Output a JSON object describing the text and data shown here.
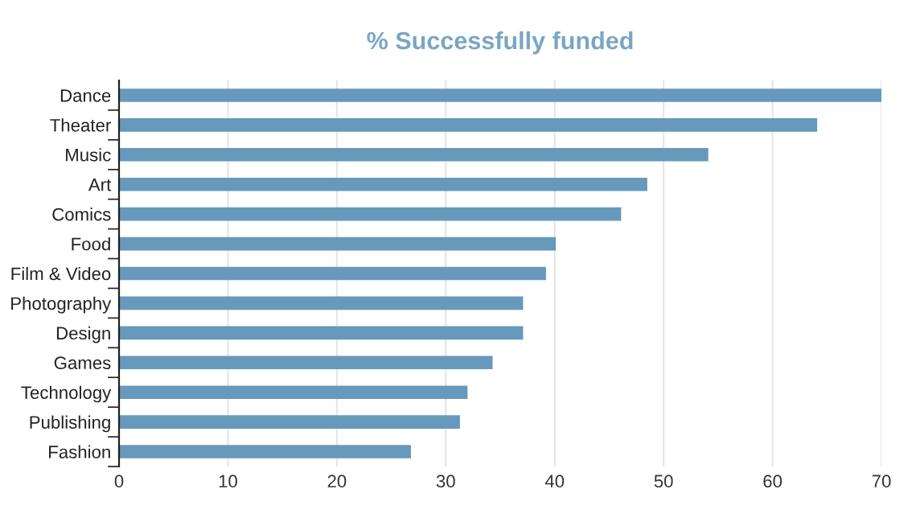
{
  "chart_data": {
    "type": "bar",
    "orientation": "horizontal",
    "title": "% Successfully funded",
    "categories": [
      "Dance",
      "Theater",
      "Music",
      "Art",
      "Comics",
      "Food",
      "Film & Video",
      "Photography",
      "Design",
      "Games",
      "Technology",
      "Publishing",
      "Fashion"
    ],
    "values": [
      70,
      64.1,
      54.1,
      48.5,
      46.1,
      40.1,
      39.2,
      37.1,
      37.1,
      34.3,
      32.0,
      31.3,
      26.8
    ],
    "color": "#6699bb",
    "xlim": [
      0,
      70
    ],
    "xticks": [
      0,
      10,
      20,
      30,
      40,
      50,
      60,
      70
    ],
    "grid": "x"
  }
}
